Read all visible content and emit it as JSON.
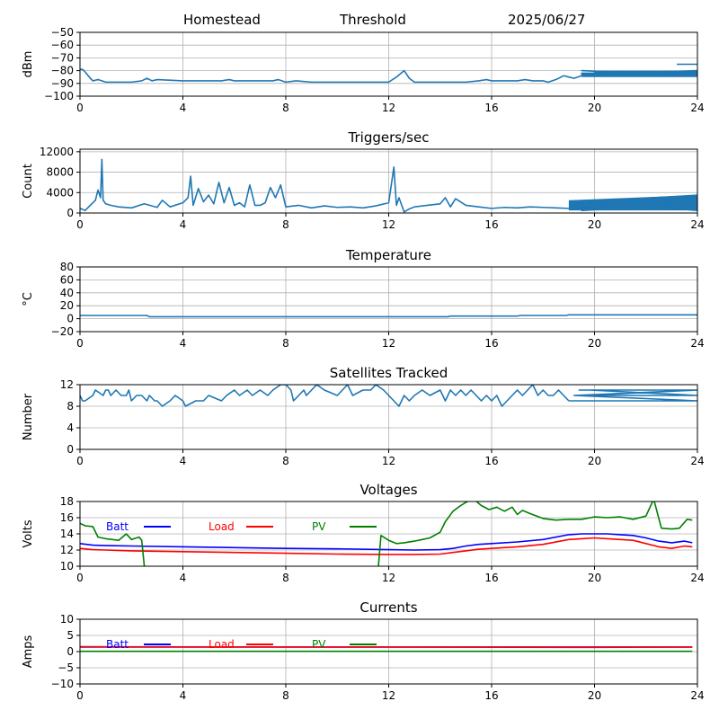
{
  "header": {
    "station": "Homestead",
    "mode": "Threshold",
    "date": "2025/06/27"
  },
  "colors": {
    "series_default": "#1f77b4",
    "batt": "#0000ff",
    "load": "#ff0000",
    "pv": "#008000",
    "grid": "#b0b0b0",
    "axis": "#000000"
  },
  "chart_data": [
    {
      "id": "signal",
      "type": "line",
      "title": "",
      "ylabel": "dBm",
      "xlim": [
        0,
        24
      ],
      "ylim": [
        -100,
        -50
      ],
      "xticks": [
        0,
        4,
        8,
        12,
        16,
        20,
        24
      ],
      "yticks": [
        -100,
        -90,
        -80,
        -70,
        -60,
        -50
      ],
      "grid": true,
      "series": [
        {
          "color": "#1f77b4",
          "x": [
            0,
            0.1,
            0.2,
            0.4,
            0.5,
            0.7,
            1,
            2,
            2.4,
            2.6,
            2.8,
            3,
            4,
            5,
            5.5,
            5.8,
            6,
            7,
            7.5,
            7.7,
            8,
            8.4,
            9,
            10,
            11,
            12,
            12.3,
            12.6,
            12.8,
            13,
            14,
            15,
            15.5,
            15.8,
            16,
            17,
            17.3,
            17.6,
            18,
            18.2,
            18.5,
            18.8,
            19,
            19.2,
            19.5
          ],
          "y": [
            -79,
            -79,
            -81,
            -86,
            -88,
            -87,
            -89,
            -89,
            -88,
            -86,
            -88,
            -87,
            -88,
            -88,
            -88,
            -87,
            -88,
            -88,
            -88,
            -87,
            -89,
            -88,
            -89,
            -89,
            -89,
            -89,
            -85,
            -80,
            -86,
            -89,
            -89,
            -89,
            -88,
            -87,
            -88,
            -88,
            -87,
            -88,
            -88,
            -89,
            -87,
            -84,
            -85,
            -86,
            -84
          ]
        },
        {
          "color": "#1f77b4",
          "x": [
            19.5,
            24,
            19.5,
            24,
            19.5,
            24,
            19.5,
            24
          ],
          "y": [
            -84,
            -82,
            -82,
            -84,
            -80,
            -84,
            -83,
            -80
          ],
          "fill": [
            [
              19.5,
              -84
            ],
            [
              20.2,
              -80
            ],
            [
              24,
              -80
            ],
            [
              24,
              -85
            ],
            [
              19.5,
              -85
            ]
          ]
        },
        {
          "color": "#1f77b4",
          "x": [
            23.2,
            24
          ],
          "y": [
            -75,
            -75
          ]
        }
      ]
    },
    {
      "id": "triggers",
      "type": "line",
      "title": "Triggers/sec",
      "ylabel": "Count",
      "xlim": [
        0,
        24
      ],
      "ylim": [
        0,
        12500
      ],
      "xticks": [
        0,
        4,
        8,
        12,
        16,
        20,
        24
      ],
      "yticks": [
        0,
        4000,
        8000,
        12000
      ],
      "grid": true,
      "series": [
        {
          "color": "#1f77b4",
          "x": [
            0,
            0.2,
            0.4,
            0.6,
            0.7,
            0.8,
            0.85,
            0.9,
            1,
            1.2,
            1.5,
            2,
            2.5,
            3,
            3.2,
            3.5,
            4,
            4.2,
            4.3,
            4.4,
            4.6,
            4.8,
            5,
            5.2,
            5.4,
            5.6,
            5.8,
            6,
            6.2,
            6.4,
            6.6,
            6.8,
            7,
            7.2,
            7.4,
            7.6,
            7.8,
            8,
            8.5,
            9,
            9.5,
            10,
            10.5,
            11,
            11.5,
            12,
            12.2,
            12.3,
            12.4,
            12.6,
            12.8,
            13,
            13.5,
            14,
            14.2,
            14.4,
            14.6,
            15,
            15.5,
            16,
            16.5,
            17,
            17.5,
            18,
            18.5,
            19
          ],
          "y": [
            900,
            500,
            1500,
            2500,
            4500,
            3000,
            10500,
            2500,
            1800,
            1500,
            1200,
            1000,
            1800,
            1100,
            2500,
            1200,
            2000,
            3000,
            7200,
            1500,
            4800,
            2200,
            3500,
            1800,
            6000,
            2000,
            5000,
            1500,
            2000,
            1200,
            5500,
            1500,
            1500,
            2000,
            5000,
            3000,
            5500,
            1200,
            1500,
            1000,
            1400,
            1100,
            1200,
            1000,
            1400,
            2000,
            9000,
            1500,
            3000,
            200,
            800,
            1200,
            1500,
            1800,
            3000,
            1200,
            2800,
            1500,
            1200,
            900,
            1100,
            1000,
            1200,
            1100,
            1000,
            900
          ]
        },
        {
          "color": "#1f77b4",
          "x": [
            19,
            24,
            19.5,
            24,
            19.5,
            24,
            19.5,
            24
          ],
          "y": [
            700,
            3500,
            2200,
            500,
            2400,
            2800,
            500,
            1800
          ],
          "fill": [
            [
              19,
              500
            ],
            [
              19,
              2500
            ],
            [
              24,
              3500
            ],
            [
              24,
              500
            ]
          ]
        }
      ]
    },
    {
      "id": "temperature",
      "type": "line",
      "title": "Temperature",
      "ylabel": "°C",
      "xlim": [
        0,
        24
      ],
      "ylim": [
        -20,
        80
      ],
      "xticks": [
        0,
        4,
        8,
        12,
        16,
        20,
        24
      ],
      "yticks": [
        -20,
        0,
        20,
        40,
        60,
        80
      ],
      "grid": true,
      "series": [
        {
          "color": "#1f77b4",
          "x": [
            0,
            2.6,
            2.7,
            14.3,
            14.4,
            17,
            17.1,
            18.9,
            19,
            24
          ],
          "y": [
            5,
            5,
            3,
            3,
            4,
            4,
            5,
            5,
            6,
            6
          ]
        }
      ]
    },
    {
      "id": "satellites",
      "type": "line",
      "title": "Satellites Tracked",
      "ylabel": "Number",
      "xlim": [
        0,
        24
      ],
      "ylim": [
        0,
        12
      ],
      "xticks": [
        0,
        4,
        8,
        12,
        16,
        20,
        24
      ],
      "yticks": [
        0,
        4,
        8,
        12
      ],
      "grid": true,
      "series": [
        {
          "color": "#1f77b4",
          "x": [
            0,
            0.1,
            0.2,
            0.5,
            0.6,
            0.9,
            1,
            1.1,
            1.2,
            1.4,
            1.6,
            1.8,
            1.9,
            2.0,
            2.2,
            2.4,
            2.6,
            2.7,
            2.9,
            3,
            3.2,
            3.5,
            3.7,
            4,
            4.1,
            4.5,
            4.8,
            5,
            5.5,
            5.7,
            6,
            6.2,
            6.5,
            6.7,
            7,
            7.3,
            7.5,
            7.8,
            8,
            8.2,
            8.3,
            8.5,
            8.7,
            8.8,
            9,
            9.2,
            9.5,
            10,
            10.2,
            10.4,
            10.6,
            11,
            11.3,
            11.5,
            11.8,
            12,
            12.2,
            12.4,
            12.6,
            12.8,
            13,
            13.3,
            13.6,
            14,
            14.2,
            14.4,
            14.6,
            14.8,
            15,
            15.2,
            15.4,
            15.6,
            15.8,
            16,
            16.2,
            16.4,
            16.6,
            16.8,
            17,
            17.2,
            17.4,
            17.6,
            17.8,
            18,
            18.2,
            18.4,
            18.6,
            18.8,
            19
          ],
          "y": [
            10,
            9,
            9,
            10,
            11,
            10,
            11,
            11,
            10,
            11,
            10,
            10,
            11,
            9,
            10,
            10,
            9,
            10,
            9,
            9,
            8,
            9,
            10,
            9,
            8,
            9,
            9,
            10,
            9,
            10,
            11,
            10,
            11,
            10,
            11,
            10,
            11,
            12,
            12,
            11,
            9,
            10,
            11,
            10,
            11,
            12,
            11,
            10,
            11,
            12,
            10,
            11,
            11,
            12,
            11,
            10,
            9,
            8,
            10,
            9,
            10,
            11,
            10,
            11,
            9,
            11,
            10,
            11,
            10,
            11,
            10,
            9,
            10,
            9,
            10,
            8,
            9,
            10,
            11,
            10,
            11,
            12,
            10,
            11,
            10,
            10,
            11,
            10,
            9
          ]
        },
        {
          "color": "#1f77b4",
          "x": [
            19,
            24,
            19.2,
            24,
            19.4,
            24,
            19.6,
            24,
            19.8,
            24
          ],
          "y": [
            9,
            9,
            10,
            11,
            11,
            11,
            10,
            10,
            11,
            11
          ]
        }
      ]
    },
    {
      "id": "voltages",
      "type": "line",
      "title": "Voltages",
      "ylabel": "Volts",
      "xlim": [
        0,
        24
      ],
      "ylim": [
        10,
        18
      ],
      "xticks": [
        0,
        4,
        8,
        12,
        16,
        20,
        24
      ],
      "yticks": [
        10,
        12,
        14,
        16,
        18
      ],
      "grid": true,
      "legend": "inline-top-left",
      "series": [
        {
          "name": "Batt",
          "color": "#0000ff",
          "x": [
            0,
            0.5,
            1,
            2,
            4,
            6,
            8,
            10,
            12,
            13,
            14,
            14.5,
            15,
            15.5,
            16,
            17,
            18,
            19,
            19.5,
            20,
            20.5,
            21,
            21.5,
            22,
            22.5,
            23,
            23.5,
            23.8
          ],
          "y": [
            12.8,
            12.6,
            12.55,
            12.5,
            12.4,
            12.3,
            12.2,
            12.15,
            12.05,
            12.0,
            12.05,
            12.2,
            12.5,
            12.7,
            12.8,
            13.0,
            13.3,
            13.9,
            14.0,
            14.0,
            14.0,
            13.9,
            13.8,
            13.5,
            13.1,
            12.9,
            13.1,
            12.9
          ]
        },
        {
          "name": "Load",
          "color": "#ff0000",
          "x": [
            0,
            0.5,
            1,
            2,
            4,
            6,
            8,
            10,
            12,
            13,
            14,
            14.5,
            15,
            15.5,
            16,
            17,
            18,
            19,
            19.5,
            20,
            20.5,
            21,
            21.5,
            22,
            22.5,
            23,
            23.5,
            23.8
          ],
          "y": [
            12.2,
            12.05,
            12.0,
            11.9,
            11.8,
            11.7,
            11.6,
            11.5,
            11.45,
            11.45,
            11.5,
            11.7,
            11.9,
            12.1,
            12.2,
            12.4,
            12.7,
            13.3,
            13.4,
            13.5,
            13.4,
            13.3,
            13.2,
            12.8,
            12.4,
            12.2,
            12.5,
            12.4
          ]
        },
        {
          "name": "PV",
          "color": "#008000",
          "x": [
            0,
            0.2,
            0.5,
            0.7,
            1,
            1.5,
            1.8,
            2,
            2.1,
            2.2,
            2.3,
            2.4,
            2.5
          ],
          "y": [
            15.3,
            15.0,
            14.9,
            13.6,
            13.4,
            13.2,
            14.0,
            13.3,
            13.4,
            13.5,
            13.6,
            13.2,
            10.0
          ]
        },
        {
          "name": "",
          "color": "#008000",
          "x": [
            11.6,
            11.7,
            12.0,
            12.3,
            12.6,
            13,
            13.3,
            13.6,
            14,
            14.2,
            14.5,
            14.8,
            15,
            15.3,
            15.6,
            15.9,
            16.2,
            16.5,
            16.8,
            17,
            17.2,
            17.5,
            18,
            18.5,
            19,
            19.5,
            20,
            20.5,
            21,
            21.5,
            22,
            22.3,
            22.6,
            23,
            23.3,
            23.6,
            23.8
          ],
          "y": [
            10.0,
            13.8,
            13.2,
            12.8,
            12.9,
            13.1,
            13.3,
            13.5,
            14.2,
            15.5,
            16.8,
            17.5,
            17.9,
            18.3,
            17.5,
            17.0,
            17.3,
            16.8,
            17.3,
            16.4,
            16.9,
            16.5,
            15.9,
            15.7,
            15.8,
            15.8,
            16.1,
            16.0,
            16.1,
            15.8,
            16.2,
            18.3,
            14.7,
            14.6,
            14.7,
            15.8,
            15.7
          ]
        }
      ]
    },
    {
      "id": "currents",
      "type": "line",
      "title": "Currents",
      "ylabel": "Amps",
      "xlim": [
        0,
        24
      ],
      "ylim": [
        -10,
        10
      ],
      "xticks": [
        0,
        4,
        8,
        12,
        16,
        20,
        24
      ],
      "yticks": [
        -10,
        -5,
        0,
        5,
        10
      ],
      "grid": true,
      "legend": "inline-top-left",
      "series": [
        {
          "name": "Batt",
          "color": "#0000ff",
          "x": [
            0,
            23.8
          ],
          "y": [
            1.4,
            1.4
          ]
        },
        {
          "name": "Load",
          "color": "#ff0000",
          "x": [
            0,
            12,
            20,
            23.8
          ],
          "y": [
            1.5,
            1.4,
            1.3,
            1.4
          ]
        },
        {
          "name": "PV",
          "color": "#008000",
          "x": [
            0,
            23.8
          ],
          "y": [
            0.1,
            0.1
          ]
        }
      ]
    }
  ]
}
